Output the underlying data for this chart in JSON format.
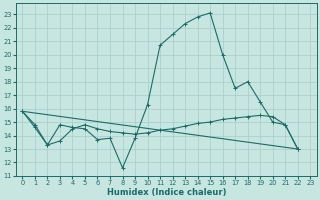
{
  "xlabel": "Humidex (Indice chaleur)",
  "background_color": "#c8e6e0",
  "grid_color": "#a8ccc8",
  "line_color": "#1a6b6b",
  "xlim": [
    -0.5,
    23.5
  ],
  "ylim": [
    11,
    23.8
  ],
  "yticks": [
    11,
    12,
    13,
    14,
    15,
    16,
    17,
    18,
    19,
    20,
    21,
    22,
    23
  ],
  "xticks": [
    0,
    1,
    2,
    3,
    4,
    5,
    6,
    7,
    8,
    9,
    10,
    11,
    12,
    13,
    14,
    15,
    16,
    17,
    18,
    19,
    20,
    21,
    22,
    23
  ],
  "line1_x": [
    0,
    1,
    2,
    3,
    4,
    5,
    6,
    7,
    8,
    9,
    10,
    11,
    12,
    13,
    14,
    15,
    16,
    17,
    18,
    19,
    20,
    21,
    22
  ],
  "line1_y": [
    15.8,
    14.6,
    13.3,
    14.8,
    14.6,
    14.5,
    13.7,
    13.8,
    11.6,
    13.8,
    16.3,
    20.7,
    21.5,
    22.3,
    22.8,
    23.1,
    20.0,
    17.5,
    18.0,
    16.5,
    15.0,
    14.8,
    13.0
  ],
  "line2_x": [
    0,
    1,
    2,
    3,
    4,
    5,
    6,
    7,
    8,
    9,
    10,
    11,
    12,
    13,
    14,
    15,
    16,
    17,
    18,
    19,
    20,
    21,
    22
  ],
  "line2_y": [
    15.8,
    14.8,
    13.3,
    13.6,
    14.5,
    14.8,
    14.5,
    14.3,
    14.2,
    14.1,
    14.2,
    14.4,
    14.5,
    14.7,
    14.9,
    15.0,
    15.2,
    15.3,
    15.4,
    15.5,
    15.4,
    14.8,
    13.0
  ],
  "line3_x": [
    0,
    22
  ],
  "line3_y": [
    15.8,
    13.0
  ]
}
